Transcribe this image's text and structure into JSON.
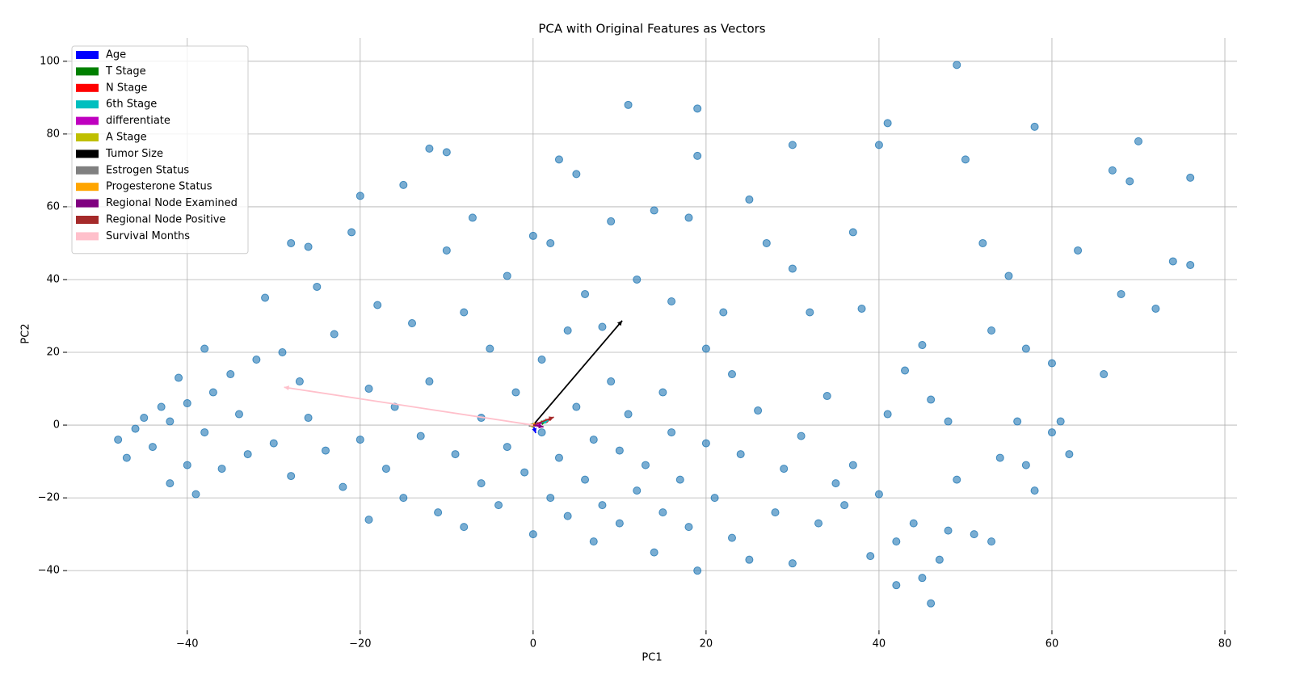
{
  "chart_data": {
    "type": "scatter",
    "title": "PCA with Original Features as Vectors",
    "x_label": "PC1",
    "y_label": "PC2",
    "color": "#1f77b4",
    "grid": true,
    "legend": "upper left",
    "xlim": [
      -53.9,
      81.4
    ],
    "ylim": [
      -56.4,
      106.4
    ],
    "xticks": [
      {
        "value": -40,
        "label": "−40"
      },
      {
        "value": -20,
        "label": "−20"
      },
      0,
      20,
      40,
      60,
      80
    ],
    "yticks": [
      {
        "value": -40,
        "label": "−40"
      },
      {
        "value": -20,
        "label": "−20"
      },
      0,
      20,
      40,
      60,
      80,
      100
    ],
    "x": [
      -48,
      -47,
      -46,
      -45,
      -44,
      -43,
      -42,
      -42,
      -41,
      -40,
      -40,
      -39,
      -38,
      -38,
      -37,
      -36,
      -35,
      -34,
      -33,
      -32,
      -31,
      -30,
      -29,
      -28,
      -28,
      -27,
      -26,
      -26,
      -25,
      -24,
      -23,
      -22,
      -21,
      -20,
      -20,
      -19,
      -19,
      -18,
      -17,
      -16,
      -15,
      -15,
      -14,
      -13,
      -12,
      -12,
      -11,
      -10,
      -10,
      -9,
      -8,
      -8,
      -7,
      -6,
      -6,
      -5,
      -4,
      -3,
      -3,
      -2,
      -1,
      0,
      0,
      1,
      1,
      2,
      2,
      3,
      3,
      4,
      4,
      5,
      5,
      6,
      6,
      7,
      7,
      8,
      8,
      9,
      9,
      10,
      10,
      11,
      11,
      12,
      12,
      13,
      14,
      14,
      15,
      15,
      16,
      16,
      17,
      18,
      18,
      19,
      19,
      19,
      20,
      20,
      21,
      22,
      23,
      23,
      24,
      25,
      25,
      26,
      27,
      28,
      29,
      30,
      30,
      30,
      31,
      32,
      33,
      34,
      35,
      36,
      37,
      37,
      38,
      39,
      40,
      40,
      41,
      41,
      42,
      42,
      43,
      44,
      45,
      45,
      46,
      46,
      47,
      48,
      48,
      49,
      49,
      50,
      51,
      52,
      53,
      53,
      54,
      55,
      56,
      57,
      57,
      58,
      58,
      60,
      60,
      61,
      63,
      62,
      66,
      67,
      68,
      69,
      70,
      72,
      74,
      76,
      76
    ],
    "y": [
      -4,
      -9,
      -1,
      2,
      -6,
      5,
      -16,
      1,
      13,
      6,
      -11,
      -19,
      -2,
      21,
      9,
      -12,
      14,
      3,
      -8,
      18,
      35,
      -5,
      20,
      50,
      -14,
      12,
      2,
      49,
      38,
      -7,
      25,
      -17,
      53,
      63,
      -4,
      10,
      -26,
      33,
      -12,
      5,
      66,
      -20,
      28,
      -3,
      76,
      12,
      -24,
      75,
      48,
      -8,
      31,
      -28,
      57,
      2,
      -16,
      21,
      -22,
      41,
      -6,
      9,
      -13,
      52,
      -30,
      -2,
      18,
      50,
      -20,
      73,
      -9,
      26,
      -25,
      69,
      5,
      -15,
      36,
      -32,
      -4,
      27,
      -22,
      56,
      12,
      -27,
      -7,
      88,
      3,
      -18,
      40,
      -11,
      59,
      -35,
      9,
      -24,
      34,
      -2,
      -15,
      57,
      -28,
      87,
      -40,
      74,
      21,
      -5,
      -20,
      31,
      -31,
      14,
      -8,
      62,
      -37,
      4,
      50,
      -24,
      -12,
      77,
      43,
      -38,
      -3,
      31,
      -27,
      8,
      -16,
      -22,
      53,
      -11,
      32,
      -36,
      77,
      -19,
      83,
      3,
      -32,
      -44,
      15,
      -27,
      22,
      -42,
      -49,
      7,
      -37,
      -29,
      1,
      99,
      -15,
      73,
      -30,
      50,
      -32,
      26,
      -9,
      41,
      1,
      21,
      -11,
      82,
      -18,
      17,
      -2,
      1,
      48,
      -8,
      14,
      70,
      36,
      67,
      78,
      32,
      45,
      68,
      44
    ],
    "vectors": [
      {
        "name": "Age",
        "color": "#0000ff",
        "x": 0.3,
        "y": -2.2
      },
      {
        "name": "T Stage",
        "color": "#008000",
        "x": 1.5,
        "y": 1.0
      },
      {
        "name": "N Stage",
        "color": "#ff0000",
        "x": 2.0,
        "y": 1.5
      },
      {
        "name": "6th Stage",
        "color": "#00bfbf",
        "x": 1.8,
        "y": 1.3
      },
      {
        "name": "differentiate",
        "color": "#bf00bf",
        "x": 1.0,
        "y": 0.5
      },
      {
        "name": "A Stage",
        "color": "#bfbf00",
        "x": 0.3,
        "y": 0.2
      },
      {
        "name": "Tumor Size",
        "color": "#000000",
        "x": 10.3,
        "y": 28.7
      },
      {
        "name": "Estrogen Status",
        "color": "#808080",
        "x": -0.5,
        "y": -0.3
      },
      {
        "name": "Progesterone Status",
        "color": "#ffa500",
        "x": -0.3,
        "y": -0.2
      },
      {
        "name": "Regional Node Examined",
        "color": "#800080",
        "x": 1.2,
        "y": -0.5
      },
      {
        "name": "Regional Node Positive",
        "color": "#a52a2a",
        "x": 2.4,
        "y": 2.2
      },
      {
        "name": "Survival Months",
        "color": "#ffc0cb",
        "x": -28.8,
        "y": 10.4
      }
    ]
  }
}
